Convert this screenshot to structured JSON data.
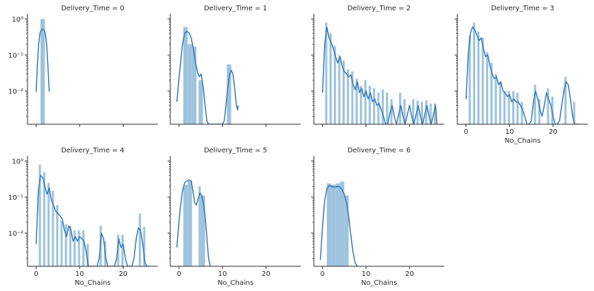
{
  "chart_data": {
    "type": "histogram-kde-facets",
    "facet_label": "Delivery_Time",
    "xlabel": "No_Chains",
    "xlim": [
      -2,
      28
    ],
    "xticks": [
      0,
      10,
      20
    ],
    "ylim": [
      0.0012,
      1.4
    ],
    "yscale": "log",
    "yticks": [
      {
        "value": 1,
        "label": "10⁰"
      },
      {
        "value": 0.1,
        "label": "10⁻¹"
      },
      {
        "value": 0.01,
        "label": "10⁻²"
      }
    ],
    "bar_color": "#9ec3de",
    "line_color": "#2f77b4",
    "facets": [
      {
        "title": "Delivery_Time = 0",
        "bars": [
          {
            "x0": 1.0,
            "x1": 2.0,
            "y": 1.0
          }
        ],
        "kde_x": [
          0,
          0.3,
          0.6,
          0.9,
          1.2,
          1.5,
          1.8,
          2.1,
          2.4,
          2.7,
          3.0
        ],
        "kde_y": [
          0.0095,
          0.06,
          0.22,
          0.42,
          0.5,
          0.52,
          0.5,
          0.4,
          0.2,
          0.05,
          0.0095
        ]
      },
      {
        "title": "Delivery_Time = 1",
        "bars": [
          {
            "x0": 1.0,
            "x1": 2.0,
            "y": 0.6
          },
          {
            "x0": 2.0,
            "x1": 3.0,
            "y": 0.2
          },
          {
            "x0": 3.0,
            "x1": 4.0,
            "y": 0.17
          },
          {
            "x0": 4.5,
            "x1": 5.5,
            "y": 0.02
          },
          {
            "x0": 11.0,
            "x1": 12.0,
            "y": 0.055
          }
        ],
        "kde_x": [
          -0.5,
          0.2,
          0.8,
          1.3,
          1.8,
          2.3,
          2.8,
          3.3,
          3.8,
          4.3,
          4.7,
          5.1,
          5.6,
          6.0,
          6.4,
          6.8,
          10.0,
          10.4,
          10.8,
          11.2,
          11.6,
          12.0,
          12.4,
          12.8,
          13.2,
          13.5,
          13.6
        ],
        "kde_y": [
          0.005,
          0.04,
          0.2,
          0.4,
          0.45,
          0.42,
          0.3,
          0.15,
          0.06,
          0.032,
          0.025,
          0.03,
          0.012,
          0.004,
          0.0015,
          0.0008,
          0.0008,
          0.0015,
          0.004,
          0.012,
          0.028,
          0.038,
          0.03,
          0.012,
          0.004,
          0.003,
          0.004
        ]
      },
      {
        "title": "Delivery_Time = 2",
        "bars": [
          {
            "x0": 0.6,
            "x1": 1.1,
            "y": 0.8
          },
          {
            "x0": 1.6,
            "x1": 2.1,
            "y": 0.4
          },
          {
            "x0": 2.6,
            "x1": 3.1,
            "y": 0.18
          },
          {
            "x0": 3.6,
            "x1": 4.1,
            "y": 0.1
          },
          {
            "x0": 4.6,
            "x1": 5.1,
            "y": 0.07
          },
          {
            "x0": 5.6,
            "x1": 6.1,
            "y": 0.04
          },
          {
            "x0": 6.6,
            "x1": 7.1,
            "y": 0.035
          },
          {
            "x0": 7.6,
            "x1": 8.1,
            "y": 0.022
          },
          {
            "x0": 8.6,
            "x1": 9.1,
            "y": 0.014
          },
          {
            "x0": 9.6,
            "x1": 10.1,
            "y": 0.02
          },
          {
            "x0": 10.6,
            "x1": 11.1,
            "y": 0.014
          },
          {
            "x0": 11.6,
            "x1": 12.1,
            "y": 0.012
          },
          {
            "x0": 12.6,
            "x1": 13.1,
            "y": 0.009
          },
          {
            "x0": 13.6,
            "x1": 14.1,
            "y": 0.011
          },
          {
            "x0": 14.6,
            "x1": 15.1,
            "y": 0.009
          },
          {
            "x0": 15.6,
            "x1": 16.1,
            "y": 0.006
          },
          {
            "x0": 17.6,
            "x1": 18.1,
            "y": 0.009
          },
          {
            "x0": 18.6,
            "x1": 19.1,
            "y": 0.006
          },
          {
            "x0": 20.6,
            "x1": 21.1,
            "y": 0.006
          },
          {
            "x0": 21.6,
            "x1": 22.1,
            "y": 0.0055
          },
          {
            "x0": 22.6,
            "x1": 23.1,
            "y": 0.005
          },
          {
            "x0": 23.6,
            "x1": 24.1,
            "y": 0.0055
          },
          {
            "x0": 24.6,
            "x1": 25.1,
            "y": 0.0045
          },
          {
            "x0": 25.6,
            "x1": 26.1,
            "y": 0.0045
          }
        ],
        "kde_x": [
          0,
          0.5,
          1.0,
          1.5,
          2.0,
          2.5,
          3.0,
          3.5,
          4.0,
          4.5,
          5.0,
          5.5,
          6.0,
          6.5,
          7.0,
          7.5,
          8.0,
          8.5,
          9.0,
          9.5,
          10.0,
          10.5,
          11.0,
          11.5,
          12.0,
          12.5,
          13.0,
          13.5,
          14.0,
          14.5,
          15.0,
          15.5,
          16.0,
          16.5,
          17.0,
          17.5,
          18.0,
          18.5,
          19.0,
          19.5,
          20.0,
          20.5,
          21.0,
          21.5,
          22.0,
          22.5,
          23.0,
          23.5,
          24.0,
          24.5,
          25.0,
          25.5,
          26.0,
          26.3
        ],
        "kde_y": [
          0.009,
          0.2,
          0.6,
          0.3,
          0.22,
          0.15,
          0.09,
          0.06,
          0.09,
          0.05,
          0.035,
          0.03,
          0.025,
          0.028,
          0.016,
          0.011,
          0.018,
          0.009,
          0.012,
          0.007,
          0.01,
          0.006,
          0.009,
          0.005,
          0.006,
          0.004,
          0.0045,
          0.003,
          0.002,
          0.001,
          0.0008,
          0.0025,
          0.004,
          0.002,
          0.0009,
          0.0022,
          0.004,
          0.002,
          0.0009,
          0.0022,
          0.004,
          0.002,
          0.0009,
          0.0022,
          0.004,
          0.002,
          0.0009,
          0.0022,
          0.004,
          0.002,
          0.0009,
          0.0022,
          0.004,
          0.0009
        ]
      },
      {
        "title": "Delivery_Time = 3",
        "bars": [
          {
            "x0": 0.6,
            "x1": 1.1,
            "y": 0.35
          },
          {
            "x0": 1.6,
            "x1": 2.1,
            "y": 0.8
          },
          {
            "x0": 2.6,
            "x1": 3.1,
            "y": 0.45
          },
          {
            "x0": 3.6,
            "x1": 4.1,
            "y": 0.3
          },
          {
            "x0": 4.6,
            "x1": 5.1,
            "y": 0.12
          },
          {
            "x0": 5.6,
            "x1": 6.1,
            "y": 0.06
          },
          {
            "x0": 6.6,
            "x1": 7.1,
            "y": 0.03
          },
          {
            "x0": 7.6,
            "x1": 8.1,
            "y": 0.018
          },
          {
            "x0": 8.6,
            "x1": 9.1,
            "y": 0.01
          },
          {
            "x0": 9.6,
            "x1": 10.1,
            "y": 0.01
          },
          {
            "x0": 10.6,
            "x1": 11.1,
            "y": 0.01
          },
          {
            "x0": 11.6,
            "x1": 12.1,
            "y": 0.009
          },
          {
            "x0": 12.6,
            "x1": 13.1,
            "y": 0.005
          },
          {
            "x0": 15.6,
            "x1": 16.1,
            "y": 0.015
          },
          {
            "x0": 16.6,
            "x1": 17.1,
            "y": 0.006
          },
          {
            "x0": 18.6,
            "x1": 19.1,
            "y": 0.012
          },
          {
            "x0": 19.6,
            "x1": 20.1,
            "y": 0.007
          },
          {
            "x0": 22.6,
            "x1": 23.1,
            "y": 0.025
          },
          {
            "x0": 24.6,
            "x1": 25.1,
            "y": 0.005
          }
        ],
        "kde_x": [
          0,
          0.5,
          1.0,
          1.5,
          2.0,
          2.5,
          3.0,
          3.5,
          4.0,
          4.5,
          5.0,
          5.5,
          6.0,
          6.5,
          7.0,
          7.5,
          8.0,
          8.5,
          9.0,
          9.5,
          10.0,
          10.5,
          11.0,
          11.5,
          12.0,
          12.5,
          13.0,
          13.5,
          14.0,
          14.5,
          15.0,
          15.5,
          16.0,
          16.5,
          17.0,
          17.5,
          18.0,
          18.5,
          19.0,
          19.5,
          20.0,
          20.5,
          21.0,
          21.5,
          22.0,
          22.5,
          23.0,
          23.5,
          24.0,
          24.5,
          25.0,
          25.5,
          26.0
        ],
        "kde_y": [
          0.006,
          0.1,
          0.4,
          0.6,
          0.5,
          0.35,
          0.25,
          0.3,
          0.15,
          0.09,
          0.1,
          0.05,
          0.03,
          0.022,
          0.025,
          0.015,
          0.018,
          0.01,
          0.009,
          0.007,
          0.008,
          0.005,
          0.006,
          0.005,
          0.005,
          0.004,
          0.003,
          0.002,
          0.0012,
          0.0008,
          0.0015,
          0.005,
          0.01,
          0.006,
          0.003,
          0.002,
          0.004,
          0.009,
          0.006,
          0.004,
          0.002,
          0.0012,
          0.0008,
          0.0015,
          0.004,
          0.01,
          0.018,
          0.015,
          0.006,
          0.002,
          0.0012,
          0.0008,
          0.0008
        ]
      },
      {
        "title": "Delivery_Time = 4",
        "bars": [
          {
            "x0": 0.6,
            "x1": 1.1,
            "y": 0.8
          },
          {
            "x0": 1.6,
            "x1": 2.1,
            "y": 0.5
          },
          {
            "x0": 2.6,
            "x1": 3.1,
            "y": 0.25
          },
          {
            "x0": 3.6,
            "x1": 4.1,
            "y": 0.15
          },
          {
            "x0": 4.6,
            "x1": 5.1,
            "y": 0.06
          },
          {
            "x0": 5.6,
            "x1": 6.1,
            "y": 0.022
          },
          {
            "x0": 6.6,
            "x1": 7.1,
            "y": 0.018
          },
          {
            "x0": 7.6,
            "x1": 8.1,
            "y": 0.016
          },
          {
            "x0": 8.6,
            "x1": 9.1,
            "y": 0.012
          },
          {
            "x0": 9.6,
            "x1": 10.1,
            "y": 0.012
          },
          {
            "x0": 10.6,
            "x1": 11.1,
            "y": 0.012
          },
          {
            "x0": 11.6,
            "x1": 12.1,
            "y": 0.005
          },
          {
            "x0": 14.6,
            "x1": 15.1,
            "y": 0.016
          },
          {
            "x0": 15.6,
            "x1": 16.1,
            "y": 0.006
          },
          {
            "x0": 18.6,
            "x1": 19.1,
            "y": 0.009
          },
          {
            "x0": 19.6,
            "x1": 20.1,
            "y": 0.009
          },
          {
            "x0": 23.6,
            "x1": 24.1,
            "y": 0.035
          },
          {
            "x0": 24.6,
            "x1": 25.1,
            "y": 0.015
          }
        ],
        "kde_x": [
          0,
          0.5,
          1.0,
          1.5,
          2.0,
          2.5,
          3.0,
          3.5,
          4.0,
          4.5,
          5.0,
          5.5,
          6.0,
          6.5,
          7.0,
          7.5,
          8.0,
          8.5,
          9.0,
          9.5,
          10.0,
          10.5,
          11.0,
          11.5,
          12.0,
          12.5,
          13.0,
          14.0,
          14.5,
          15.0,
          15.5,
          16.0,
          16.5,
          17.0,
          18.0,
          18.5,
          19.0,
          19.5,
          20.0,
          20.5,
          21.0,
          22.0,
          22.5,
          23.0,
          23.5,
          24.0,
          24.5,
          25.0,
          25.5,
          26.0
        ],
        "kde_y": [
          0.005,
          0.15,
          0.4,
          0.35,
          0.2,
          0.12,
          0.18,
          0.08,
          0.06,
          0.04,
          0.035,
          0.03,
          0.025,
          0.012,
          0.008,
          0.016,
          0.012,
          0.006,
          0.008,
          0.006,
          0.008,
          0.007,
          0.006,
          0.003,
          0.0012,
          0.0008,
          0.0008,
          0.0008,
          0.002,
          0.01,
          0.007,
          0.002,
          0.0008,
          0.0008,
          0.0008,
          0.002,
          0.007,
          0.004,
          0.005,
          0.002,
          0.0008,
          0.0008,
          0.002,
          0.007,
          0.014,
          0.012,
          0.005,
          0.0015,
          0.0008,
          0.0008
        ]
      },
      {
        "title": "Delivery_Time = 5",
        "bars": [
          {
            "x0": 1.0,
            "x1": 2.0,
            "y": 0.22
          },
          {
            "x0": 2.0,
            "x1": 3.0,
            "y": 0.28
          },
          {
            "x0": 4.5,
            "x1": 5.0,
            "y": 0.2
          },
          {
            "x0": 5.0,
            "x1": 6.0,
            "y": 0.11
          }
        ],
        "kde_x": [
          -0.5,
          0.2,
          0.8,
          1.3,
          1.8,
          2.3,
          2.8,
          3.2,
          3.6,
          4.0,
          4.4,
          4.8,
          5.2,
          5.6,
          6.0,
          6.4,
          6.8,
          7.2
        ],
        "kde_y": [
          0.004,
          0.04,
          0.15,
          0.25,
          0.28,
          0.3,
          0.28,
          0.15,
          0.07,
          0.06,
          0.09,
          0.13,
          0.11,
          0.07,
          0.03,
          0.008,
          0.002,
          0.0008
        ]
      },
      {
        "title": "Delivery_Time = 6",
        "bars": [
          {
            "x0": 1.0,
            "x1": 2.0,
            "y": 0.24
          },
          {
            "x0": 2.0,
            "x1": 3.0,
            "y": 0.22
          },
          {
            "x0": 3.0,
            "x1": 4.0,
            "y": 0.24
          },
          {
            "x0": 4.0,
            "x1": 5.0,
            "y": 0.27
          },
          {
            "x0": 5.0,
            "x1": 6.0,
            "y": 0.11
          }
        ],
        "kde_x": [
          -0.5,
          0.0,
          0.5,
          1.0,
          1.5,
          2.0,
          2.5,
          3.0,
          3.5,
          4.0,
          4.5,
          5.0,
          5.5,
          6.0,
          6.5,
          7.0,
          7.5,
          8.0
        ],
        "kde_y": [
          0.0018,
          0.015,
          0.08,
          0.17,
          0.21,
          0.2,
          0.19,
          0.19,
          0.2,
          0.19,
          0.16,
          0.12,
          0.07,
          0.03,
          0.009,
          0.003,
          0.0015,
          0.0009
        ]
      }
    ]
  }
}
